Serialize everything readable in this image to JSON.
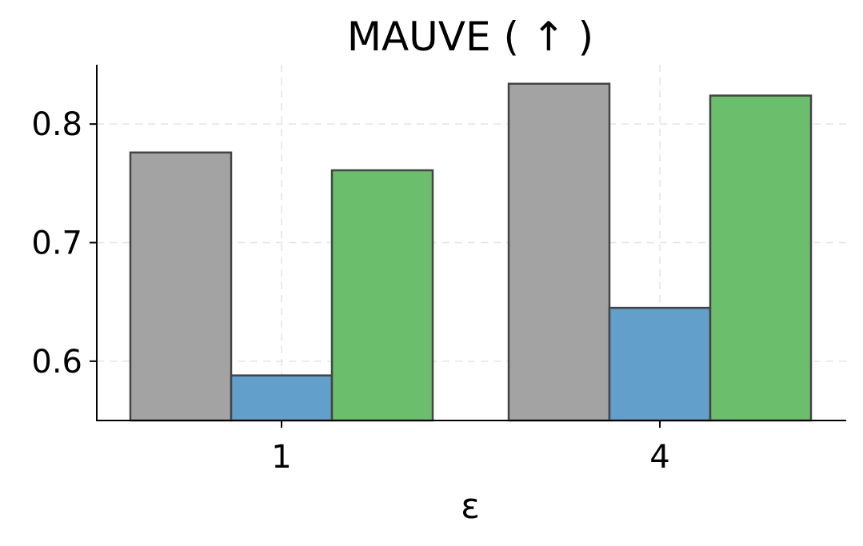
{
  "chart_data": {
    "type": "bar",
    "title": "MAUVE ( ↑ )",
    "xlabel": "ε",
    "ylabel": "",
    "categories": [
      "1",
      "4"
    ],
    "series": [
      {
        "values": [
          0.776,
          0.834
        ],
        "color": "#a3a3a3"
      },
      {
        "values": [
          0.588,
          0.645
        ],
        "color": "#629fca"
      },
      {
        "values": [
          0.761,
          0.824
        ],
        "color": "#6bbe6b"
      }
    ],
    "ylim": [
      0.55,
      0.85
    ],
    "yticks": [
      0.6,
      0.7,
      0.8
    ],
    "ytick_labels": [
      "0.6",
      "0.7",
      "0.8"
    ],
    "grid": true,
    "legend": false
  }
}
